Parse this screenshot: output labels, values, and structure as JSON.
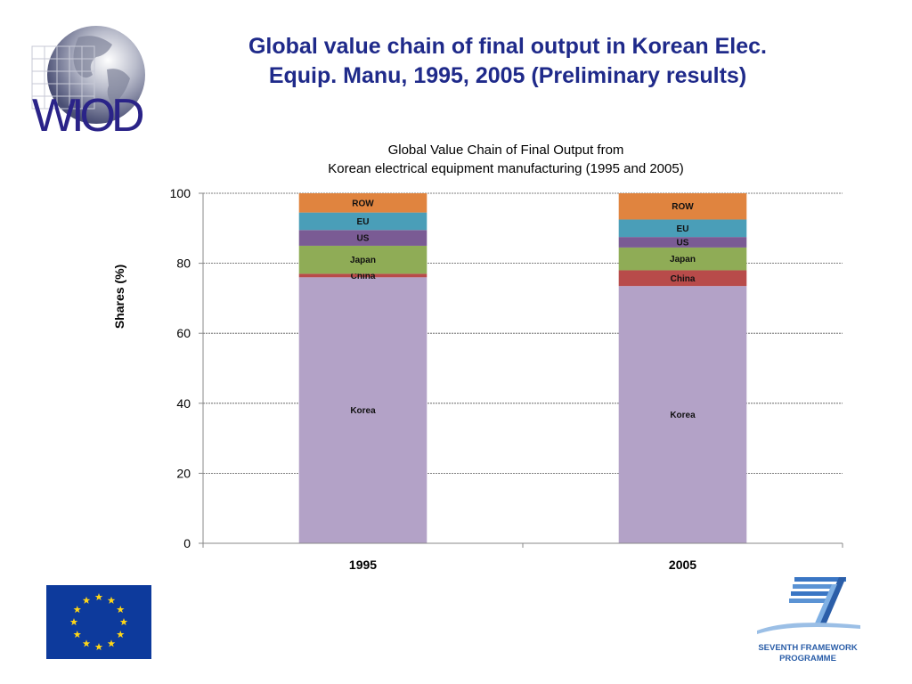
{
  "slide": {
    "title_line1": "Global value chain of final output in Korean Elec.",
    "title_line2": "Equip. Manu, 1995, 2005 (Preliminary results)"
  },
  "logo": {
    "wiod_text": "WIOD",
    "fp7_line1": "SEVENTH FRAMEWORK",
    "fp7_line2": "PROGRAMME"
  },
  "colors": {
    "title": "#1f2a8a",
    "Korea": "#b3a2c7",
    "China": "#b84b4a",
    "Japan": "#8fac56",
    "US": "#7a5b94",
    "EU": "#4a9eb8",
    "ROW": "#e0843f"
  },
  "chart_data": {
    "type": "bar",
    "stacked": true,
    "title_line1": "Global Value Chain of Final Output from",
    "title_line2": "Korean electrical equipment manufacturing (1995 and 2005)",
    "xlabel": "",
    "ylabel": "Shares (%)",
    "ylim": [
      0,
      100
    ],
    "yticks": [
      0,
      20,
      40,
      60,
      80,
      100
    ],
    "grid": true,
    "categories": [
      "1995",
      "2005"
    ],
    "series": [
      {
        "name": "Korea",
        "values": [
          76,
          73.5
        ]
      },
      {
        "name": "China",
        "values": [
          1,
          4.5
        ]
      },
      {
        "name": "Japan",
        "values": [
          8,
          6.5
        ]
      },
      {
        "name": "US",
        "values": [
          4.5,
          3
        ]
      },
      {
        "name": "EU",
        "values": [
          5,
          5
        ]
      },
      {
        "name": "ROW",
        "values": [
          5.5,
          7.5
        ]
      }
    ]
  }
}
